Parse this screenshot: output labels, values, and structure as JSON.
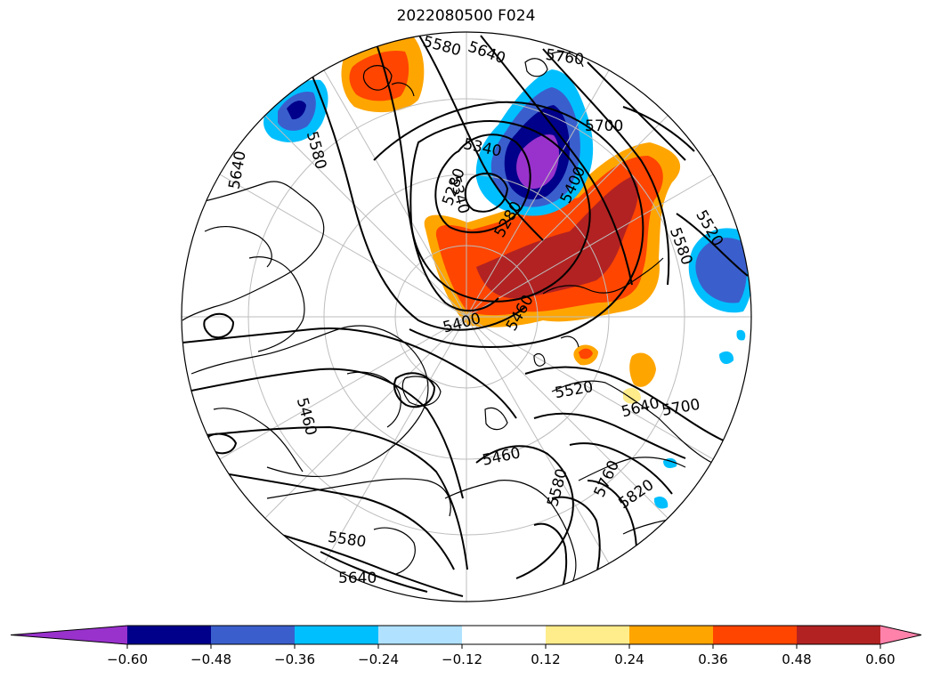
{
  "title": "2022080500 F024",
  "colorbar": {
    "ticks": [
      "−0.60",
      "−0.48",
      "−0.36",
      "−0.24",
      "−0.12",
      "0.12",
      "0.24",
      "0.36",
      "0.48",
      "0.60"
    ],
    "colors": [
      "#9932cc",
      "#00008b",
      "#3a5fcd",
      "#00bfff",
      "#b0e2ff",
      "#ffffff",
      "#ffec8b",
      "#ffa500",
      "#ff4500",
      "#b22222",
      "#ff82ab"
    ],
    "extend": "both"
  },
  "contour_labels": [
    "5580",
    "5640",
    "5760",
    "5700",
    "5580",
    "5640",
    "5340",
    "5280",
    "5340",
    "5280",
    "5400",
    "5520",
    "5580",
    "5400",
    "5460",
    "5520",
    "5640",
    "5700",
    "5460",
    "5460",
    "5760",
    "5820",
    "5580",
    "5640",
    "5580"
  ],
  "map": {
    "projection": "north-polar-stereographic",
    "colors": {
      "contour": "#000000",
      "coast": "#000000",
      "grid": "#bdbdbd",
      "boundary": "#000000"
    }
  }
}
